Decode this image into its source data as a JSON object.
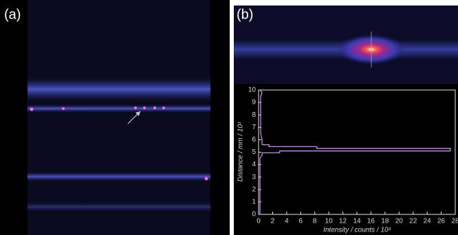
{
  "panels": [
    "(a)",
    "(b)"
  ],
  "chart_data": {
    "type": "line",
    "xlabel": "Intensity / counts / 10³",
    "ylabel": "Distance / mm / 10³",
    "x": [
      0.2,
      0.2,
      0.5,
      0.5,
      3,
      3,
      27.3,
      27.3,
      8.3,
      8.3,
      1.5,
      1.5,
      0.5,
      0.5,
      0.3,
      0.3,
      0.5,
      0.2
    ],
    "series": [
      {
        "color": "#cc88ee",
        "values": [
          0,
          4.5,
          4.8,
          4.95,
          4.95,
          5.1,
          5.1,
          5.3,
          5.3,
          5.45,
          5.45,
          5.6,
          5.6,
          6,
          6.5,
          9.5,
          9.8,
          10
        ]
      }
    ],
    "xlim": [
      0,
      28
    ],
    "xticks": [
      0,
      2,
      4,
      6,
      8,
      10,
      12,
      14,
      16,
      18,
      20,
      22,
      24,
      26,
      28
    ],
    "ylim": [
      0,
      10
    ],
    "yticks": [
      0,
      1,
      2,
      3,
      4,
      5,
      6,
      7,
      8,
      9,
      10
    ]
  }
}
